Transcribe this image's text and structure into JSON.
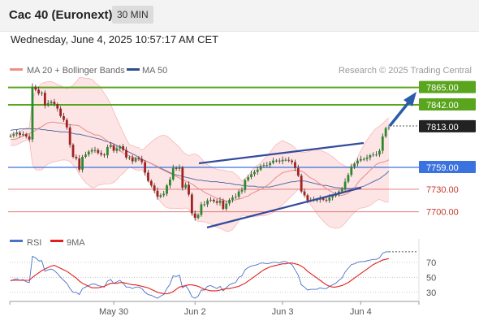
{
  "header": {
    "title": "Cac 40 (Euronext)",
    "timeframe": "30 MIN"
  },
  "timestamp": "Wednesday, June 4, 2025 10:57:17 AM CET",
  "legend": {
    "ma20": "MA 20 + Bollinger Bands",
    "ma50": "MA 50",
    "source": "Research © 2025 Trading Central"
  },
  "colors": {
    "candle_up": "#2c8a2c",
    "candle_down": "#a22222",
    "bollinger_fill": "#fde2e2",
    "ma20": "#e98a8a",
    "ma50": "#5a6ea8",
    "resistance": "#5aa51e",
    "support": "#e06a6a",
    "pivot": "#3a72e0",
    "current": "#222222",
    "channel": "#344a9c",
    "arrow": "#2a5cab",
    "rsi": "#4a72c8",
    "rsi_ma": "#e02020"
  },
  "chart_data": [
    {
      "type": "candlestick",
      "title": "Cac 40 (Euronext)",
      "timeframe": "30 MIN",
      "x_labels": [
        "May 30",
        "Jun 2",
        "Jun 3",
        "Jun 4"
      ],
      "ylim": [
        7676,
        7870
      ],
      "price_levels": [
        {
          "value": 7865.0,
          "label": "7865.00",
          "kind": "resistance"
        },
        {
          "value": 7842.0,
          "label": "7842.00",
          "kind": "resistance"
        },
        {
          "value": 7813.0,
          "label": "7813.00",
          "kind": "current"
        },
        {
          "value": 7759.0,
          "label": "7759.00",
          "kind": "pivot"
        },
        {
          "value": 7730.0,
          "label": "7730.00",
          "kind": "support"
        },
        {
          "value": 7700.0,
          "label": "7700.00",
          "kind": "support"
        }
      ],
      "close_series": [
        7801,
        7803,
        7805,
        7802,
        7803,
        7800,
        7796,
        7866,
        7862,
        7857,
        7858,
        7841,
        7844,
        7846,
        7843,
        7837,
        7827,
        7822,
        7812,
        7789,
        7773,
        7771,
        7756,
        7773,
        7776,
        7780,
        7782,
        7782,
        7778,
        7776,
        7775,
        7786,
        7788,
        7781,
        7784,
        7787,
        7782,
        7772,
        7772,
        7767,
        7771,
        7770,
        7766,
        7752,
        7741,
        7735,
        7728,
        7720,
        7722,
        7724,
        7735,
        7743,
        7758,
        7757,
        7759,
        7732,
        7736,
        7723,
        7698,
        7692,
        7696,
        7710,
        7710,
        7715,
        7716,
        7714,
        7712,
        7715,
        7704,
        7711,
        7716,
        7719,
        7720,
        7727,
        7729,
        7742,
        7746,
        7750,
        7753,
        7756,
        7761,
        7762,
        7762,
        7765,
        7768,
        7768,
        7767,
        7769,
        7769,
        7768,
        7766,
        7758,
        7748,
        7727,
        7722,
        7715,
        7716,
        7716,
        7716,
        7718,
        7716,
        7715,
        7719,
        7721,
        7723,
        7727,
        7730,
        7740,
        7749,
        7760,
        7764,
        7768,
        7770,
        7770,
        7772,
        7775,
        7776,
        7776,
        7781,
        7800,
        7811,
        7812
      ],
      "ma20": [
        7796,
        7796,
        7797,
        7799,
        7801,
        7803,
        7804,
        7806,
        7808,
        7811,
        7813,
        7816,
        7818,
        7819,
        7819,
        7818,
        7818,
        7817,
        7816,
        7816,
        7815,
        7815,
        7814,
        7811,
        7808,
        7806,
        7804,
        7802,
        7802,
        7800,
        7797,
        7794,
        7790,
        7786,
        7783,
        7781,
        7778,
        7776,
        7774,
        7773,
        7771,
        7770,
        7769,
        7768,
        7766,
        7764,
        7762,
        7759,
        7757,
        7755,
        7753,
        7751,
        7749,
        7747,
        7745,
        7742,
        7741,
        7739,
        7737,
        7734,
        7731,
        7729,
        7726,
        7724,
        7722,
        7720,
        7718,
        7717,
        7716,
        7714,
        7714,
        7715,
        7716,
        7717,
        7718,
        7720,
        7721,
        7724,
        7726,
        7728,
        7730,
        7732,
        7735,
        7738,
        7742,
        7746,
        7749,
        7752,
        7753,
        7754,
        7755,
        7755,
        7755,
        7754,
        7752,
        7748,
        7745,
        7743,
        7740,
        7737,
        7734,
        7731,
        7728,
        7726,
        7724,
        7722,
        7722,
        7723,
        7725,
        7728,
        7732,
        7738,
        7743,
        7747,
        7751,
        7755,
        7759,
        7763,
        7765,
        7766,
        7767,
        7769
      ],
      "ma50": [
        7808,
        7809,
        7809,
        7810,
        7810,
        7810,
        7810,
        7810,
        7810,
        7810,
        7809,
        7809,
        7808,
        7808,
        7807,
        7807,
        7806,
        7806,
        7806,
        7805,
        7804,
        7803,
        7803,
        7802,
        7801,
        7800,
        7799,
        7798,
        7797,
        7796,
        7794,
        7793,
        7792,
        7790,
        7788,
        7786,
        7784,
        7781,
        7779,
        7777,
        7775,
        7772,
        7770,
        7768,
        7766,
        7764,
        7762,
        7760,
        7758,
        7756,
        7754,
        7752,
        7750,
        7749,
        7748,
        7747,
        7746,
        7745,
        7744,
        7743,
        7742,
        7742,
        7741,
        7741,
        7740,
        7740,
        7740,
        7739,
        7739,
        7738,
        7738,
        7737,
        7736,
        7736,
        7735,
        7735,
        7734,
        7734,
        7734,
        7733,
        7733,
        7733,
        7733,
        7733,
        7734,
        7735,
        7736,
        7737,
        7738,
        7739,
        7740,
        7740,
        7741,
        7741,
        7741,
        7740,
        7739,
        7738,
        7737,
        7736,
        7735,
        7735,
        7734,
        7733,
        7732,
        7732,
        7731,
        7731,
        7731,
        7731,
        7732,
        7732,
        7733,
        7734,
        7736,
        7738,
        7740,
        7742,
        7744,
        7747,
        7750,
        7754
      ]
    },
    {
      "type": "line",
      "title": "RSI",
      "ylim": [
        20,
        85
      ],
      "y_ticks": [
        70,
        50,
        30
      ],
      "series": [
        {
          "name": "RSI",
          "values": [
            45,
            47,
            48,
            46,
            47,
            44,
            43,
            78,
            76,
            72,
            72,
            58,
            60,
            61,
            59,
            55,
            50,
            46,
            42,
            35,
            30,
            30,
            27,
            35,
            37,
            39,
            41,
            41,
            39,
            38,
            37,
            45,
            47,
            42,
            44,
            46,
            42,
            37,
            37,
            35,
            37,
            37,
            35,
            30,
            27,
            26,
            24,
            22,
            25,
            27,
            35,
            41,
            52,
            51,
            53,
            36,
            39,
            33,
            24,
            22,
            25,
            33,
            33,
            38,
            39,
            37,
            35,
            38,
            32,
            36,
            40,
            42,
            43,
            50,
            52,
            60,
            63,
            65,
            66,
            67,
            69,
            69,
            68,
            69,
            70,
            70,
            69,
            71,
            71,
            69,
            67,
            60,
            53,
            40,
            37,
            33,
            34,
            34,
            34,
            36,
            35,
            35,
            38,
            40,
            42,
            46,
            49,
            57,
            62,
            67,
            68,
            70,
            71,
            71,
            72,
            73,
            74,
            74,
            76,
            82,
            84,
            84
          ]
        },
        {
          "name": "9MA",
          "values": [
            46,
            46,
            46,
            46,
            46,
            46,
            46,
            50,
            53,
            56,
            59,
            61,
            63,
            65,
            66,
            64,
            62,
            60,
            58,
            55,
            52,
            49,
            45,
            42,
            40,
            38,
            36,
            36,
            36,
            37,
            38,
            40,
            42,
            42,
            42,
            43,
            43,
            42,
            41,
            40,
            40,
            39,
            38,
            37,
            36,
            34,
            32,
            30,
            29,
            28,
            28,
            29,
            31,
            34,
            37,
            38,
            39,
            40,
            40,
            39,
            38,
            36,
            34,
            33,
            32,
            32,
            32,
            33,
            34,
            35,
            35,
            36,
            37,
            38,
            40,
            42,
            45,
            48,
            51,
            54,
            57,
            60,
            62,
            64,
            65,
            66,
            67,
            68,
            68,
            69,
            69,
            68,
            67,
            65,
            62,
            58,
            55,
            52,
            49,
            46,
            43,
            40,
            38,
            37,
            37,
            38,
            39,
            41,
            43,
            46,
            49,
            52,
            55,
            58,
            61,
            64,
            67,
            69,
            71,
            73,
            74,
            75
          ]
        }
      ]
    }
  ]
}
